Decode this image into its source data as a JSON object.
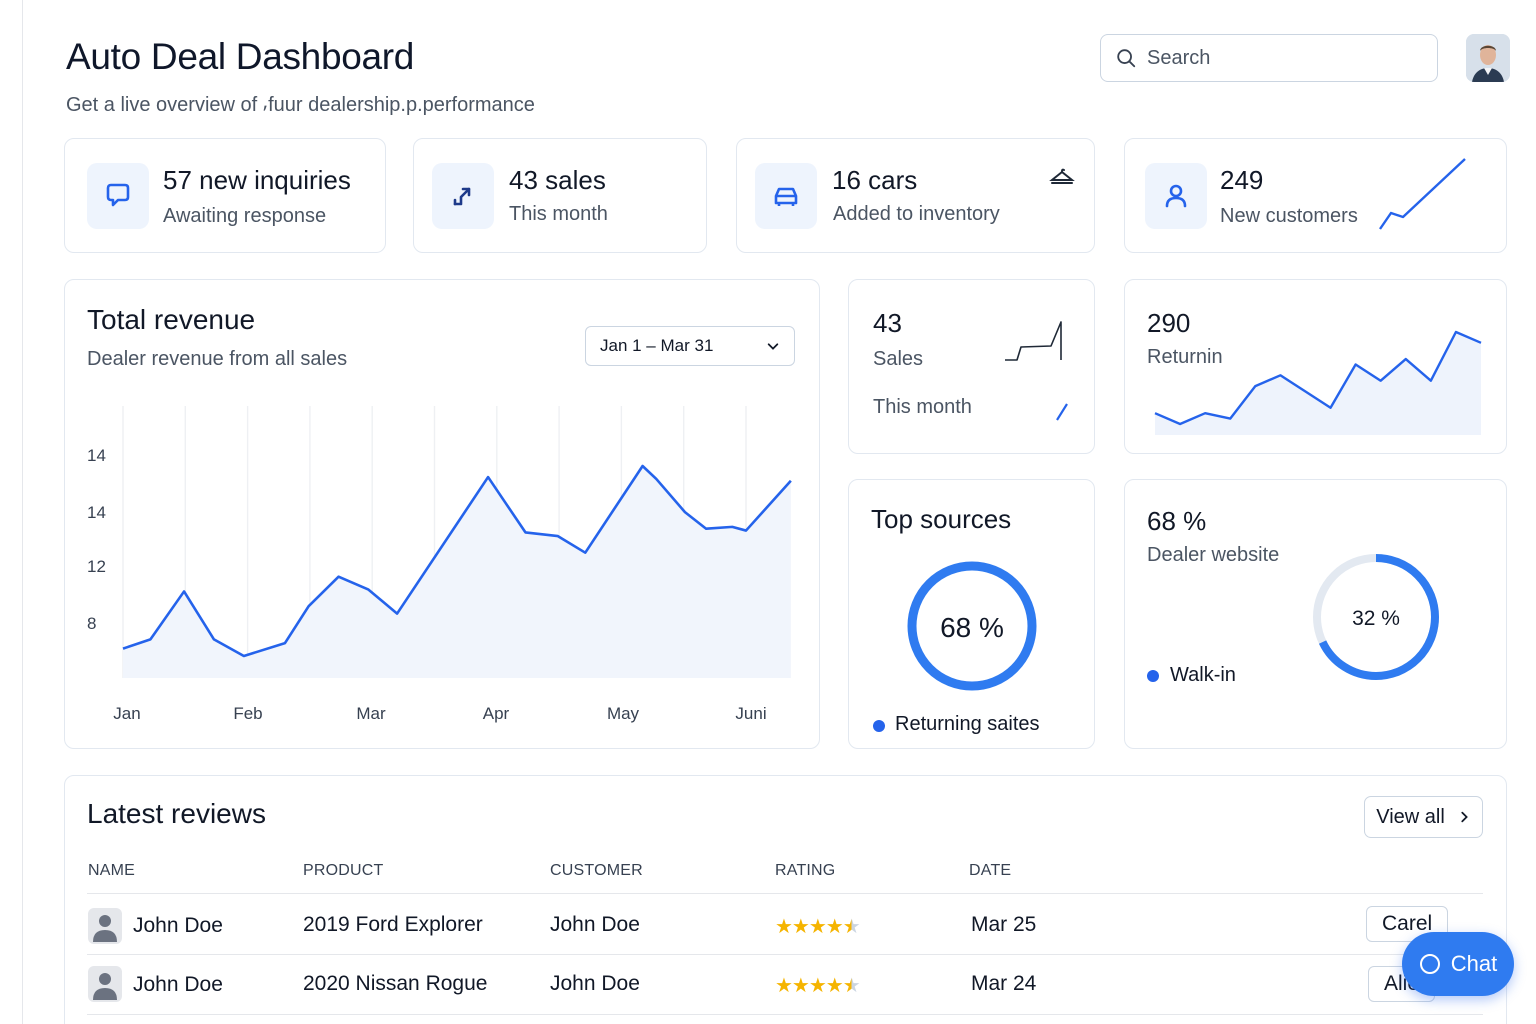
{
  "header": {
    "title": "Auto Deal Dashboard",
    "subtitle": "Get a live overview of ⸴fuur dealership.p.performance",
    "search_placeholder": "Search"
  },
  "stats": [
    {
      "value": "57 new inquiries",
      "label": "Awaiting response",
      "icon": "message-icon"
    },
    {
      "value": "43 sales",
      "label": "This month",
      "icon": "trend-arrow-icon"
    },
    {
      "value": "16 cars",
      "label": "Added to inventory",
      "icon": "car-icon"
    },
    {
      "value": "249",
      "label": "New customers",
      "icon": "user-icon"
    }
  ],
  "revenue": {
    "title": "Total revenue",
    "subtitle": "Dealer revenue from all sales",
    "date_range": "Jan 1 – Mar 31"
  },
  "chart_data": {
    "type": "area",
    "title": "Total revenue",
    "x_tick_labels": [
      "Jan",
      "Feb",
      "Mar",
      "Apr",
      "May",
      "Juni"
    ],
    "y_tick_labels": [
      "14",
      "14",
      "12",
      "8"
    ],
    "points": [
      {
        "x": 0.0,
        "y": 6.1
      },
      {
        "x": 0.22,
        "y": 6.6
      },
      {
        "x": 0.49,
        "y": 9.2
      },
      {
        "x": 0.73,
        "y": 6.6
      },
      {
        "x": 0.97,
        "y": 5.7
      },
      {
        "x": 1.3,
        "y": 6.4
      },
      {
        "x": 1.49,
        "y": 8.4
      },
      {
        "x": 1.73,
        "y": 10.0
      },
      {
        "x": 1.97,
        "y": 9.3
      },
      {
        "x": 2.2,
        "y": 8.0
      },
      {
        "x": 2.93,
        "y": 15.4
      },
      {
        "x": 3.23,
        "y": 12.4
      },
      {
        "x": 3.49,
        "y": 12.2
      },
      {
        "x": 3.71,
        "y": 11.3
      },
      {
        "x": 4.17,
        "y": 16.0
      },
      {
        "x": 4.28,
        "y": 15.3
      },
      {
        "x": 4.51,
        "y": 13.5
      },
      {
        "x": 4.68,
        "y": 12.6
      },
      {
        "x": 4.89,
        "y": 12.7
      },
      {
        "x": 5.0,
        "y": 12.5
      },
      {
        "x": 5.36,
        "y": 15.2
      }
    ],
    "series_color": "#2563eb",
    "grid": true
  },
  "mini_sales": {
    "value": "43",
    "label": "Sales",
    "sublabel": "This month"
  },
  "returning": {
    "value": "290",
    "label": "Returnin",
    "trend": [
      4,
      2,
      4,
      3,
      9,
      11,
      8,
      5,
      13,
      10,
      14,
      10,
      19,
      17
    ]
  },
  "top_sources": {
    "title": "Top sources",
    "percent_label": "68 %",
    "percent": 0.68,
    "legend": "Returning saites"
  },
  "dealer_website": {
    "value": "68 %",
    "label": "Dealer website",
    "ring_label": "32 %",
    "ring_percent": 0.68,
    "legend": "Walk-in"
  },
  "reviews": {
    "title": "Latest reviews",
    "view_all": "View all",
    "columns": [
      "NAME",
      "PRODUCT",
      "CUSTOMER",
      "RATING",
      "DATE"
    ],
    "rows": [
      {
        "name": "John Doe",
        "product": "2019 Ford Explorer",
        "customer": "John Doe",
        "rating": 4.5,
        "date": "Mar 25",
        "action": "Carel"
      },
      {
        "name": "John Doe",
        "product": "2020 Nissan Rogue",
        "customer": "John Doe",
        "rating": 4.5,
        "date": "Mar 24",
        "action": "Alie"
      }
    ]
  },
  "chat": {
    "label": "Chat"
  },
  "colors": {
    "accent": "#2563eb",
    "icon_bg": "#eef4fd",
    "star": "#f5b400"
  }
}
